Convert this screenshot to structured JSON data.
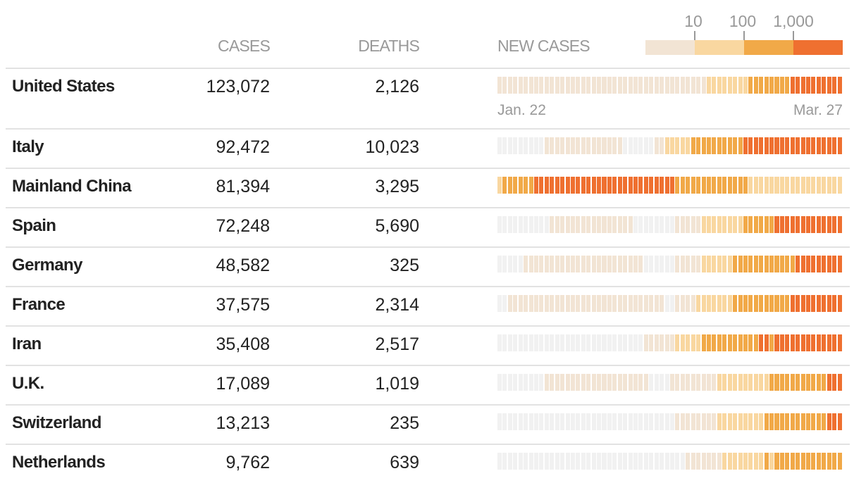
{
  "header": {
    "cases": "CASES",
    "deaths": "DEATHS",
    "new_cases": "NEW CASES"
  },
  "legend": {
    "ticks": [
      "10",
      "100",
      "1,000"
    ]
  },
  "colors": {
    "0": "#f1f1f1",
    "1": "#f2e4d4",
    "2": "#f9d7a0",
    "3": "#f1a948",
    "4": "#ef7030"
  },
  "axis": {
    "start": "Jan. 22",
    "end": "Mar. 27"
  },
  "chart_data": {
    "type": "heatmap",
    "title": "NEW CASES",
    "x_range": [
      "Jan. 22",
      "Mar. 27"
    ],
    "days": 66,
    "levels": [
      "none",
      "1-9",
      "10-99",
      "100-999",
      "1,000+"
    ],
    "rows": [
      {
        "country": "United States",
        "cases": "123,072",
        "deaths": "2,126",
        "runs": [
          [
            1,
            40
          ],
          [
            2,
            8
          ],
          [
            3,
            8
          ],
          [
            4,
            10
          ]
        ]
      },
      {
        "country": "Italy",
        "cases": "92,472",
        "deaths": "10,023",
        "runs": [
          [
            0,
            9
          ],
          [
            1,
            15
          ],
          [
            0,
            6
          ],
          [
            1,
            2
          ],
          [
            2,
            5
          ],
          [
            3,
            10
          ],
          [
            4,
            19
          ]
        ]
      },
      {
        "country": "Mainland China",
        "cases": "81,394",
        "deaths": "3,295",
        "runs": [
          [
            2,
            1
          ],
          [
            3,
            6
          ],
          [
            4,
            27
          ],
          [
            3,
            14
          ],
          [
            2,
            18
          ]
        ]
      },
      {
        "country": "Spain",
        "cases": "72,248",
        "deaths": "5,690",
        "runs": [
          [
            0,
            10
          ],
          [
            1,
            16
          ],
          [
            0,
            8
          ],
          [
            1,
            5
          ],
          [
            2,
            8
          ],
          [
            3,
            6
          ],
          [
            4,
            13
          ]
        ]
      },
      {
        "country": "Germany",
        "cases": "48,582",
        "deaths": "325",
        "runs": [
          [
            0,
            5
          ],
          [
            1,
            23
          ],
          [
            0,
            6
          ],
          [
            1,
            5
          ],
          [
            2,
            6
          ],
          [
            3,
            12
          ],
          [
            4,
            9
          ]
        ]
      },
      {
        "country": "France",
        "cases": "37,575",
        "deaths": "2,314",
        "runs": [
          [
            0,
            2
          ],
          [
            1,
            30
          ],
          [
            0,
            2
          ],
          [
            1,
            4
          ],
          [
            2,
            7
          ],
          [
            3,
            11
          ],
          [
            4,
            10
          ]
        ]
      },
      {
        "country": "Iran",
        "cases": "35,408",
        "deaths": "2,517",
        "runs": [
          [
            0,
            28
          ],
          [
            1,
            6
          ],
          [
            2,
            5
          ],
          [
            3,
            11
          ],
          [
            4,
            2
          ],
          [
            3,
            1
          ],
          [
            4,
            13
          ]
        ]
      },
      {
        "country": "U.K.",
        "cases": "17,089",
        "deaths": "1,019",
        "runs": [
          [
            0,
            9
          ],
          [
            1,
            20
          ],
          [
            0,
            4
          ],
          [
            1,
            9
          ],
          [
            2,
            10
          ],
          [
            3,
            11
          ],
          [
            4,
            3
          ]
        ]
      },
      {
        "country": "Switzerland",
        "cases": "13,213",
        "deaths": "235",
        "runs": [
          [
            0,
            34
          ],
          [
            1,
            8
          ],
          [
            2,
            9
          ],
          [
            3,
            12
          ],
          [
            4,
            3
          ]
        ]
      },
      {
        "country": "Netherlands",
        "cases": "9,762",
        "deaths": "639",
        "runs": [
          [
            0,
            36
          ],
          [
            1,
            7
          ],
          [
            2,
            8
          ],
          [
            3,
            1
          ],
          [
            2,
            1
          ],
          [
            3,
            13
          ]
        ]
      }
    ]
  }
}
